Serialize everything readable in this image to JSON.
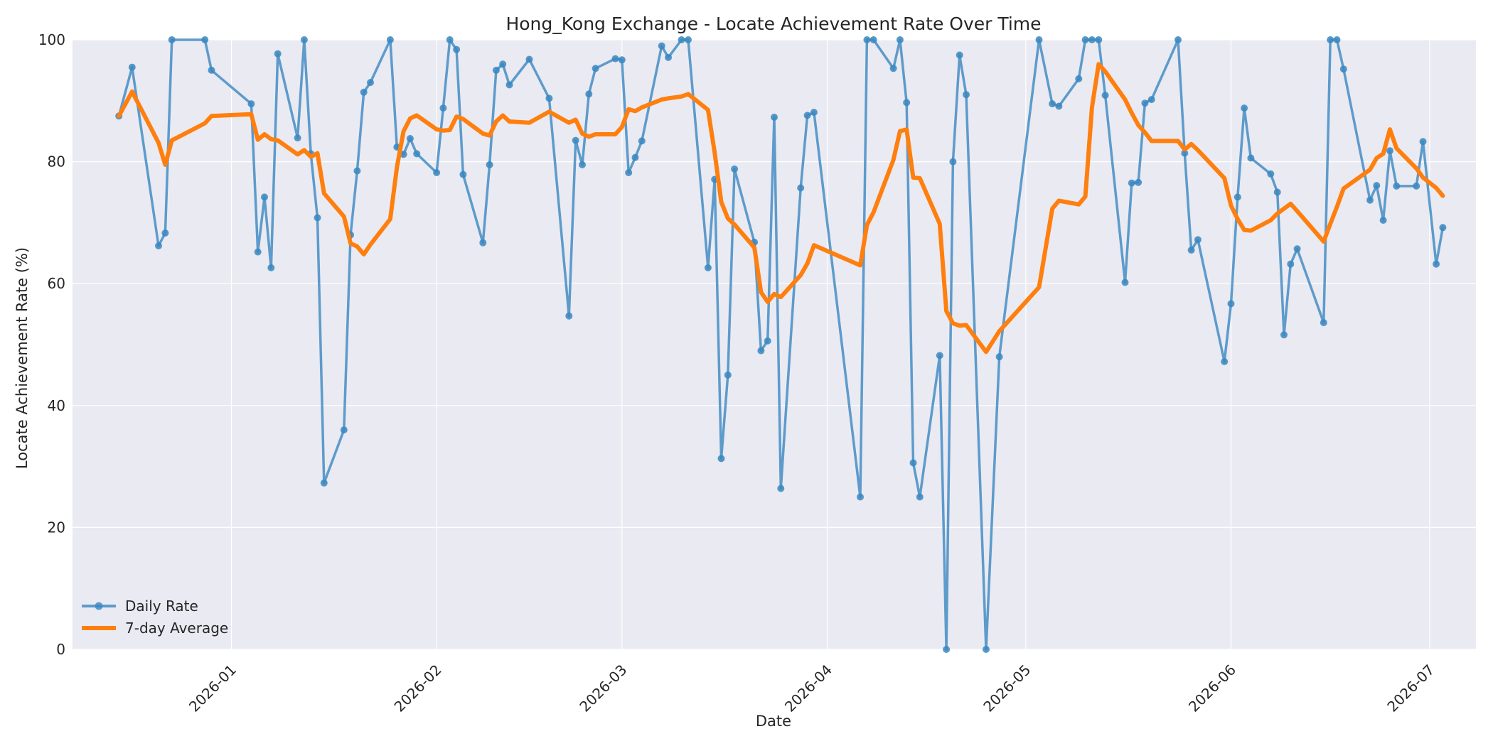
{
  "chart_data": {
    "type": "line",
    "title": "Hong_Kong Exchange - Locate Achievement Rate Over Time",
    "xlabel": "Date",
    "ylabel": "Locate Achievement Rate (%)",
    "ylim": [
      0,
      100
    ],
    "xlim": [
      "2025-12-08",
      "2026-07-08"
    ],
    "x_ticks": [
      "2026-01-01",
      "2026-02-01",
      "2026-03-01",
      "2026-04-01",
      "2026-05-01",
      "2026-06-01",
      "2026-07-01"
    ],
    "x_tick_labels": [
      "2026-01",
      "2026-02",
      "2026-03",
      "2026-04",
      "2026-05",
      "2026-06",
      "2026-07"
    ],
    "y_ticks": [
      0,
      20,
      40,
      60,
      80,
      100
    ],
    "y_tick_labels": [
      "0",
      "20",
      "40",
      "60",
      "80",
      "100"
    ],
    "grid": true,
    "legend": "bottom-left",
    "series": [
      {
        "name": "Daily Rate",
        "color": "#3a87c0",
        "marker": "circle",
        "points": [
          [
            "2025-12-15",
            87.5
          ],
          [
            "2025-12-17",
            95.5
          ],
          [
            "2025-12-21",
            66.2
          ],
          [
            "2025-12-22",
            68.3
          ],
          [
            "2025-12-23",
            100
          ],
          [
            "2025-12-28",
            100
          ],
          [
            "2025-12-29",
            95.0
          ],
          [
            "2026-01-04",
            89.5
          ],
          [
            "2026-01-05",
            65.2
          ],
          [
            "2026-01-06",
            74.2
          ],
          [
            "2026-01-07",
            62.6
          ],
          [
            "2026-01-08",
            97.7
          ],
          [
            "2026-01-11",
            83.9
          ],
          [
            "2026-01-12",
            100
          ],
          [
            "2026-01-13",
            81.3
          ],
          [
            "2026-01-14",
            70.8
          ],
          [
            "2026-01-15",
            27.3
          ],
          [
            "2026-01-18",
            36.0
          ],
          [
            "2026-01-19",
            68.0
          ],
          [
            "2026-01-20",
            78.5
          ],
          [
            "2026-01-21",
            91.4
          ],
          [
            "2026-01-22",
            93.0
          ],
          [
            "2026-01-25",
            100
          ],
          [
            "2026-01-26",
            82.4
          ],
          [
            "2026-01-27",
            81.2
          ],
          [
            "2026-01-28",
            83.8
          ],
          [
            "2026-01-29",
            81.3
          ],
          [
            "2026-02-01",
            78.2
          ],
          [
            "2026-02-02",
            88.8
          ],
          [
            "2026-02-03",
            100
          ],
          [
            "2026-02-04",
            98.4
          ],
          [
            "2026-02-05",
            77.9
          ],
          [
            "2026-02-08",
            66.7
          ],
          [
            "2026-02-09",
            79.5
          ],
          [
            "2026-02-10",
            95.0
          ],
          [
            "2026-02-11",
            96.0
          ],
          [
            "2026-02-12",
            92.6
          ],
          [
            "2026-02-15",
            96.8
          ],
          [
            "2026-02-18",
            90.4
          ],
          [
            "2026-02-21",
            54.7
          ],
          [
            "2026-02-22",
            83.5
          ],
          [
            "2026-02-23",
            79.5
          ],
          [
            "2026-02-24",
            91.1
          ],
          [
            "2026-02-25",
            95.3
          ],
          [
            "2026-02-28",
            96.9
          ],
          [
            "2026-03-01",
            96.7
          ],
          [
            "2026-03-02",
            78.2
          ],
          [
            "2026-03-03",
            80.7
          ],
          [
            "2026-03-04",
            83.4
          ],
          [
            "2026-03-07",
            99.0
          ],
          [
            "2026-03-08",
            97.1
          ],
          [
            "2026-03-10",
            100
          ],
          [
            "2026-03-11",
            100
          ],
          [
            "2026-03-14",
            62.6
          ],
          [
            "2026-03-15",
            77.1
          ],
          [
            "2026-03-16",
            31.3
          ],
          [
            "2026-03-17",
            45.0
          ],
          [
            "2026-03-18",
            78.8
          ],
          [
            "2026-03-21",
            66.8
          ],
          [
            "2026-03-22",
            49.0
          ],
          [
            "2026-03-23",
            50.6
          ],
          [
            "2026-03-24",
            87.3
          ],
          [
            "2026-03-25",
            26.4
          ],
          [
            "2026-03-28",
            75.7
          ],
          [
            "2026-03-29",
            87.6
          ],
          [
            "2026-03-30",
            88.1
          ],
          [
            "2026-04-06",
            25.0
          ],
          [
            "2026-04-07",
            100
          ],
          [
            "2026-04-08",
            100
          ],
          [
            "2026-04-11",
            95.3
          ],
          [
            "2026-04-12",
            100
          ],
          [
            "2026-04-13",
            89.7
          ],
          [
            "2026-04-14",
            30.6
          ],
          [
            "2026-04-15",
            25.0
          ],
          [
            "2026-04-18",
            48.2
          ],
          [
            "2026-04-19",
            0
          ],
          [
            "2026-04-20",
            80.0
          ],
          [
            "2026-04-21",
            97.5
          ],
          [
            "2026-04-22",
            91.0
          ],
          [
            "2026-04-25",
            0
          ],
          [
            "2026-04-27",
            48.0
          ],
          [
            "2026-05-03",
            100
          ],
          [
            "2026-05-05",
            89.5
          ],
          [
            "2026-05-06",
            89.1
          ],
          [
            "2026-05-09",
            93.6
          ],
          [
            "2026-05-10",
            100
          ],
          [
            "2026-05-11",
            100
          ],
          [
            "2026-05-12",
            100
          ],
          [
            "2026-05-13",
            90.9
          ],
          [
            "2026-05-16",
            60.2
          ],
          [
            "2026-05-17",
            76.5
          ],
          [
            "2026-05-18",
            76.6
          ],
          [
            "2026-05-19",
            89.6
          ],
          [
            "2026-05-20",
            90.2
          ],
          [
            "2026-05-24",
            100
          ],
          [
            "2026-05-25",
            81.4
          ],
          [
            "2026-05-26",
            65.5
          ],
          [
            "2026-05-27",
            67.2
          ],
          [
            "2026-05-31",
            47.2
          ],
          [
            "2026-06-01",
            56.7
          ],
          [
            "2026-06-02",
            74.2
          ],
          [
            "2026-06-03",
            88.8
          ],
          [
            "2026-06-04",
            80.6
          ],
          [
            "2026-06-07",
            78.0
          ],
          [
            "2026-06-08",
            75.0
          ],
          [
            "2026-06-09",
            51.6
          ],
          [
            "2026-06-10",
            63.2
          ],
          [
            "2026-06-11",
            65.7
          ],
          [
            "2026-06-15",
            53.6
          ],
          [
            "2026-06-16",
            100
          ],
          [
            "2026-06-17",
            100
          ],
          [
            "2026-06-18",
            95.2
          ],
          [
            "2026-06-22",
            73.7
          ],
          [
            "2026-06-23",
            76.1
          ],
          [
            "2026-06-24",
            70.4
          ],
          [
            "2026-06-25",
            81.8
          ],
          [
            "2026-06-26",
            76.0
          ],
          [
            "2026-06-29",
            76.0
          ],
          [
            "2026-06-30",
            83.3
          ],
          [
            "2026-07-02",
            63.2
          ],
          [
            "2026-07-03",
            69.2
          ]
        ]
      },
      {
        "name": "7-day Average",
        "color": "#ff7f0e",
        "marker": "none",
        "points": [
          [
            "2025-12-15",
            87.5
          ],
          [
            "2025-12-17",
            91.5
          ],
          [
            "2025-12-21",
            83.1
          ],
          [
            "2025-12-22",
            79.5
          ],
          [
            "2025-12-23",
            83.5
          ],
          [
            "2025-12-28",
            86.3
          ],
          [
            "2025-12-29",
            87.5
          ],
          [
            "2026-01-04",
            87.8
          ],
          [
            "2026-01-05",
            83.6
          ],
          [
            "2026-01-06",
            84.5
          ],
          [
            "2026-01-07",
            83.7
          ],
          [
            "2026-01-08",
            83.5
          ],
          [
            "2026-01-11",
            81.2
          ],
          [
            "2026-01-12",
            81.9
          ],
          [
            "2026-01-13",
            80.8
          ],
          [
            "2026-01-14",
            81.4
          ],
          [
            "2026-01-15",
            74.8
          ],
          [
            "2026-01-18",
            71.0
          ],
          [
            "2026-01-19",
            66.6
          ],
          [
            "2026-01-20",
            66.1
          ],
          [
            "2026-01-21",
            64.8
          ],
          [
            "2026-01-22",
            66.4
          ],
          [
            "2026-01-25",
            70.6
          ],
          [
            "2026-01-26",
            79.1
          ],
          [
            "2026-01-27",
            85.0
          ],
          [
            "2026-01-28",
            87.1
          ],
          [
            "2026-01-29",
            87.6
          ],
          [
            "2026-02-01",
            85.3
          ],
          [
            "2026-02-02",
            85.1
          ],
          [
            "2026-02-03",
            85.2
          ],
          [
            "2026-02-04",
            87.4
          ],
          [
            "2026-02-05",
            87.0
          ],
          [
            "2026-02-08",
            84.6
          ],
          [
            "2026-02-09",
            84.3
          ],
          [
            "2026-02-10",
            86.6
          ],
          [
            "2026-02-11",
            87.6
          ],
          [
            "2026-02-12",
            86.6
          ],
          [
            "2026-02-15",
            86.4
          ],
          [
            "2026-02-18",
            88.2
          ],
          [
            "2026-02-21",
            86.4
          ],
          [
            "2026-02-22",
            86.9
          ],
          [
            "2026-02-23",
            84.6
          ],
          [
            "2026-02-24",
            84.1
          ],
          [
            "2026-02-25",
            84.5
          ],
          [
            "2026-02-28",
            84.5
          ],
          [
            "2026-03-01",
            85.7
          ],
          [
            "2026-03-02",
            88.6
          ],
          [
            "2026-03-03",
            88.3
          ],
          [
            "2026-03-04",
            88.9
          ],
          [
            "2026-03-07",
            90.2
          ],
          [
            "2026-03-08",
            90.4
          ],
          [
            "2026-03-10",
            90.7
          ],
          [
            "2026-03-11",
            91.1
          ],
          [
            "2026-03-14",
            88.5
          ],
          [
            "2026-03-15",
            81.5
          ],
          [
            "2026-03-16",
            73.4
          ],
          [
            "2026-03-17",
            70.7
          ],
          [
            "2026-03-18",
            69.7
          ],
          [
            "2026-03-21",
            65.9
          ],
          [
            "2026-03-22",
            58.6
          ],
          [
            "2026-03-23",
            57.0
          ],
          [
            "2026-03-24",
            58.3
          ],
          [
            "2026-03-25",
            57.8
          ],
          [
            "2026-03-28",
            61.4
          ],
          [
            "2026-03-29",
            63.3
          ],
          [
            "2026-03-30",
            66.3
          ],
          [
            "2026-04-06",
            63.0
          ],
          [
            "2026-04-07",
            69.6
          ],
          [
            "2026-04-08",
            71.7
          ],
          [
            "2026-04-11",
            80.3
          ],
          [
            "2026-04-12",
            85.0
          ],
          [
            "2026-04-13",
            85.3
          ],
          [
            "2026-04-14",
            77.4
          ],
          [
            "2026-04-15",
            77.3
          ],
          [
            "2026-04-18",
            69.8
          ],
          [
            "2026-04-19",
            55.5
          ],
          [
            "2026-04-20",
            53.5
          ],
          [
            "2026-04-21",
            53.1
          ],
          [
            "2026-04-22",
            53.2
          ],
          [
            "2026-04-25",
            48.8
          ],
          [
            "2026-04-27",
            52.2
          ],
          [
            "2026-05-03",
            59.4
          ],
          [
            "2026-05-05",
            72.3
          ],
          [
            "2026-05-06",
            73.6
          ],
          [
            "2026-05-09",
            73.0
          ],
          [
            "2026-05-10",
            74.3
          ],
          [
            "2026-05-11",
            88.9
          ],
          [
            "2026-05-12",
            96.0
          ],
          [
            "2026-05-13",
            94.8
          ],
          [
            "2026-05-16",
            90.2
          ],
          [
            "2026-05-17",
            88.0
          ],
          [
            "2026-05-18",
            86.0
          ],
          [
            "2026-05-19",
            84.8
          ],
          [
            "2026-05-20",
            83.4
          ],
          [
            "2026-05-24",
            83.4
          ],
          [
            "2026-05-25",
            82.0
          ],
          [
            "2026-05-26",
            82.9
          ],
          [
            "2026-05-27",
            81.9
          ],
          [
            "2026-05-31",
            77.3
          ],
          [
            "2026-06-01",
            72.8
          ],
          [
            "2026-06-02",
            70.6
          ],
          [
            "2026-06-03",
            68.8
          ],
          [
            "2026-06-04",
            68.7
          ],
          [
            "2026-06-07",
            70.4
          ],
          [
            "2026-06-08",
            71.5
          ],
          [
            "2026-06-09",
            72.3
          ],
          [
            "2026-06-10",
            73.1
          ],
          [
            "2026-06-11",
            71.9
          ],
          [
            "2026-06-15",
            66.9
          ],
          [
            "2026-06-16",
            69.8
          ],
          [
            "2026-06-17",
            72.6
          ],
          [
            "2026-06-18",
            75.6
          ],
          [
            "2026-06-22",
            78.7
          ],
          [
            "2026-06-23",
            80.6
          ],
          [
            "2026-06-24",
            81.3
          ],
          [
            "2026-06-25",
            85.3
          ],
          [
            "2026-06-26",
            82.2
          ],
          [
            "2026-06-29",
            78.9
          ],
          [
            "2026-06-30",
            77.4
          ],
          [
            "2026-07-02",
            75.7
          ],
          [
            "2026-07-03",
            74.4
          ]
        ]
      }
    ]
  }
}
